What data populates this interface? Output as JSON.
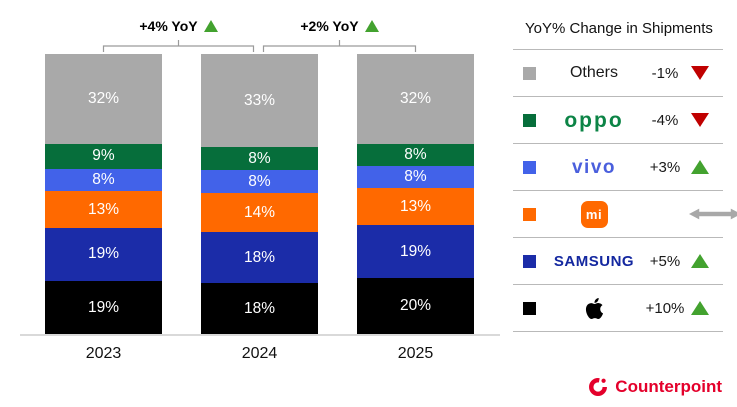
{
  "chart_data": {
    "type": "bar",
    "stacked": true,
    "value_suffix": "%",
    "grid": false,
    "legend_position": "right",
    "categories": [
      "2023",
      "2024",
      "2025"
    ],
    "series": [
      {
        "name": "Apple",
        "color": "#000000",
        "values": [
          19,
          18,
          20
        ]
      },
      {
        "name": "Samsung",
        "color": "#1b2ca8",
        "values": [
          19,
          18,
          19
        ]
      },
      {
        "name": "Xiaomi",
        "color": "#ff6900",
        "values": [
          13,
          14,
          13
        ]
      },
      {
        "name": "vivo",
        "color": "#4262e9",
        "values": [
          8,
          8,
          8
        ]
      },
      {
        "name": "OPPO",
        "color": "#066e3b",
        "values": [
          9,
          8,
          8
        ]
      },
      {
        "name": "Others",
        "color": "#a9a9a9",
        "values": [
          32,
          33,
          32
        ]
      }
    ],
    "annotations": [
      {
        "text": "+4% YoY",
        "trend": "up",
        "between": [
          "2023",
          "2024"
        ]
      },
      {
        "text": "+2% YoY",
        "trend": "up",
        "between": [
          "2024",
          "2025"
        ]
      }
    ]
  },
  "legend": {
    "title": "YoY% Change in Shipments",
    "rows": [
      {
        "brand": "Others",
        "logo_text": "Others",
        "change": "-1%",
        "trend": "down",
        "swatch": "#a9a9a9",
        "logo_color": "#1a1a1a"
      },
      {
        "brand": "OPPO",
        "logo_text": "oppo",
        "change": "-4%",
        "trend": "down",
        "swatch": "#066e3b",
        "logo_color": "#0c8446"
      },
      {
        "brand": "vivo",
        "logo_text": "vivo",
        "change": "+3%",
        "trend": "up",
        "swatch": "#4262e9",
        "logo_color": "#4a5fdd"
      },
      {
        "brand": "Xiaomi",
        "logo_text": "mi",
        "change": "",
        "trend": "flat",
        "swatch": "#ff6900",
        "logo_color": "#ff6900"
      },
      {
        "brand": "SAMSUNG",
        "logo_text": "SAMSUNG",
        "change": "+5%",
        "trend": "up",
        "swatch": "#1b2ca8",
        "logo_color": "#1428a0"
      },
      {
        "brand": "Apple",
        "logo_text": "",
        "change": "+10%",
        "trend": "up",
        "swatch": "#000000",
        "logo_color": "#000000"
      }
    ]
  },
  "watermark": "counterpoint",
  "branding": {
    "name": "Counterpoint",
    "color": "#e4002b"
  },
  "colors": {
    "trend_up": "#43a22f",
    "trend_down": "#c00000",
    "trend_flat": "#a8a8a8",
    "bracket_line": "#9a9a9a"
  }
}
